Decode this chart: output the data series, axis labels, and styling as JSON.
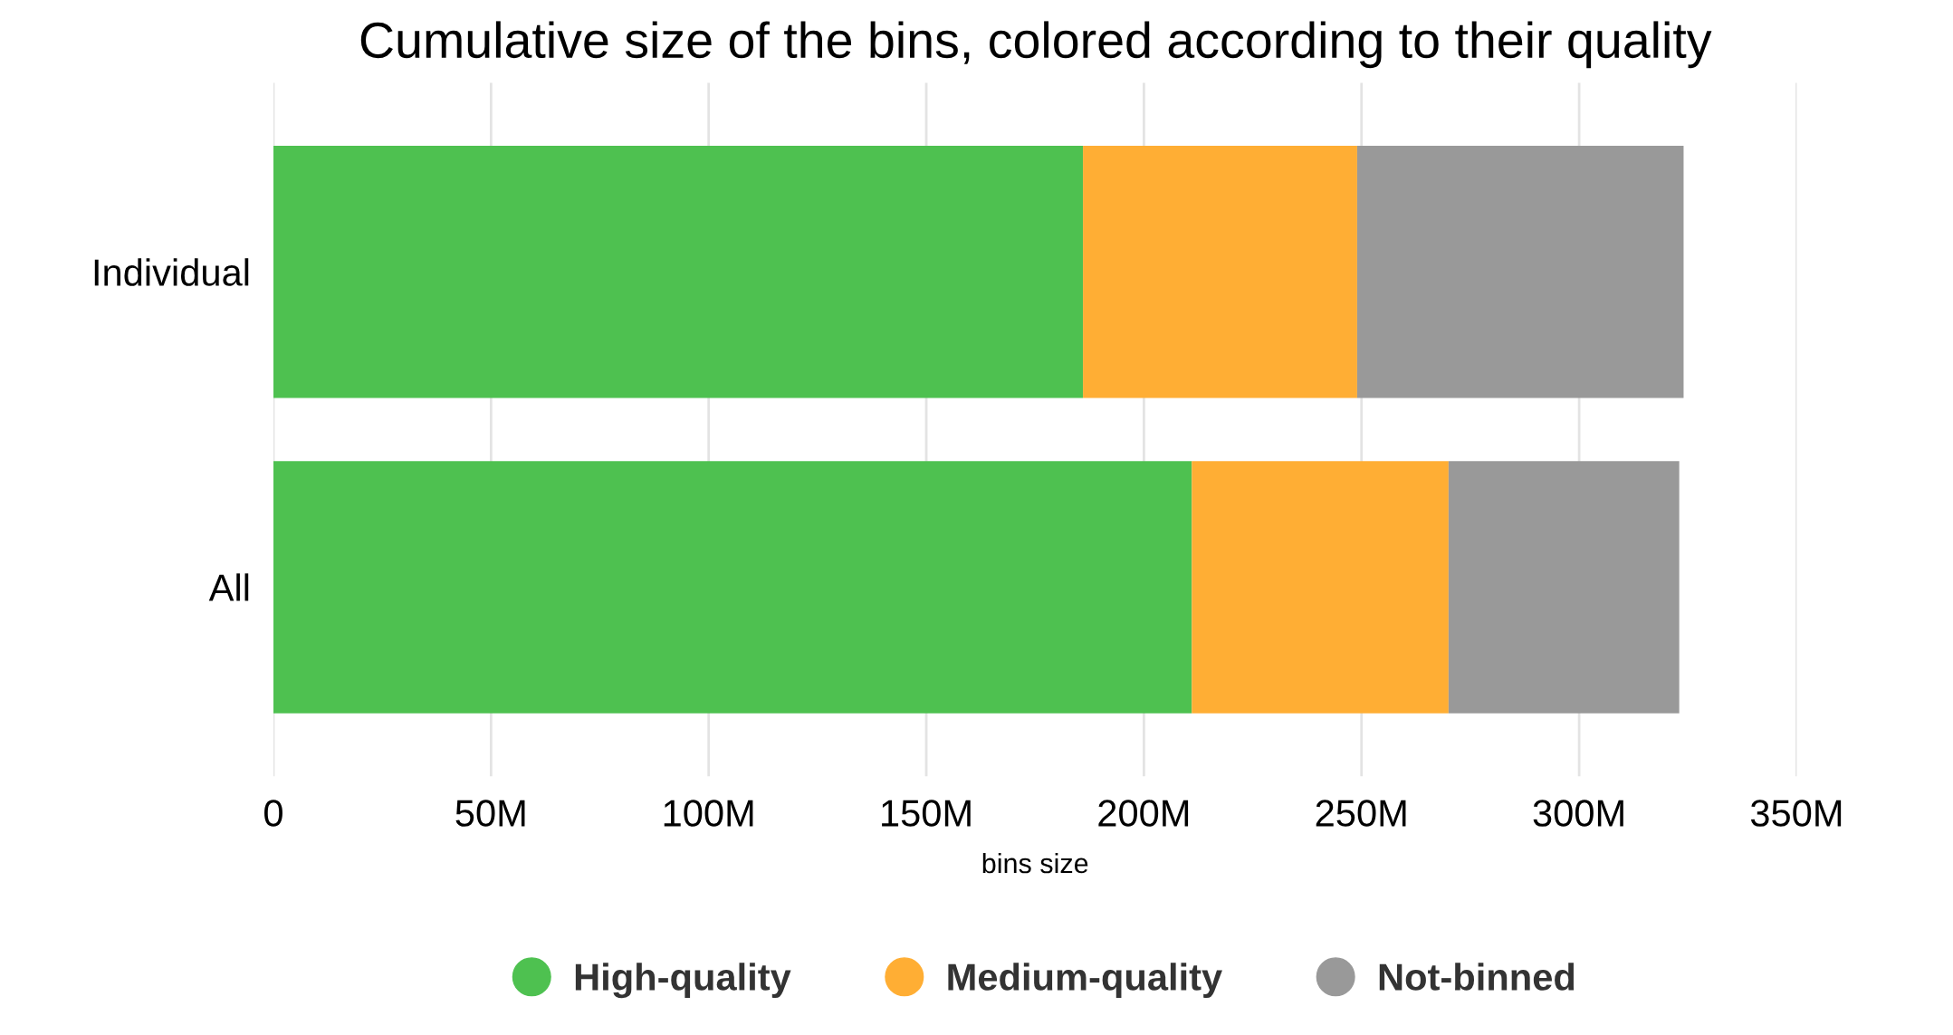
{
  "chart_data": {
    "type": "bar",
    "orientation": "horizontal",
    "stacked": true,
    "title": "Cumulative size of the bins, colored according to their quality",
    "xlabel": "bins size",
    "categories": [
      "Individual",
      "All"
    ],
    "series": [
      {
        "name": "High-quality",
        "color": "#4ec150",
        "values": [
          186,
          211
        ]
      },
      {
        "name": "Medium-quality",
        "color": "#ffae34",
        "values": [
          63,
          59
        ]
      },
      {
        "name": "Not-binned",
        "color": "#999999",
        "values": [
          75,
          53
        ]
      }
    ],
    "xlim": [
      0,
      350
    ],
    "xticks": [
      0,
      {
        "value": 50,
        "label": "50M"
      },
      {
        "value": 100,
        "label": "100M"
      },
      {
        "value": 150,
        "label": "150M"
      },
      {
        "value": 200,
        "label": "200M"
      },
      {
        "value": 250,
        "label": "250M"
      },
      {
        "value": 300,
        "label": "300M"
      },
      {
        "value": 350,
        "label": "350M"
      }
    ],
    "grid": "x",
    "legend": "bottom",
    "marker": "circle"
  }
}
